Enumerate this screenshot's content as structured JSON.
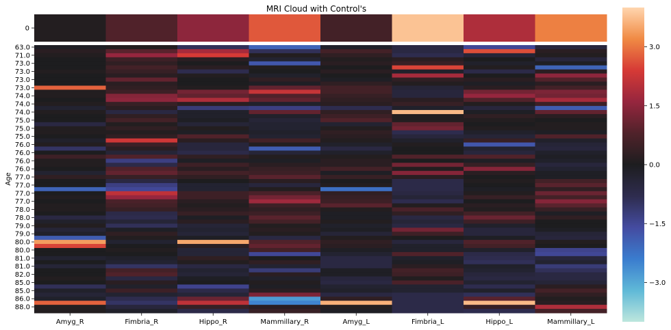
{
  "chart_data": [
    {
      "type": "heatmap",
      "title": "MRI Cloud with Control's",
      "columns": [
        "Amyg_R",
        "Fimbria_R",
        "Hippo_R",
        "Mammillary_R",
        "Amyg_L",
        "Fimbria_L",
        "Hippo_L",
        "Mammillary_L"
      ],
      "rows": [
        "0"
      ],
      "values": [
        [
          0.1,
          0.8,
          1.5,
          2.7,
          0.6,
          3.8,
          1.9,
          3.1
        ]
      ]
    },
    {
      "type": "heatmap",
      "ylabel": "Age",
      "columns": [
        "Amyg_R",
        "Fimbria_R",
        "Hippo_R",
        "Mammillary_R",
        "Amyg_L",
        "Fimbria_L",
        "Hippo_L",
        "Mammillary_L"
      ],
      "row_tick_labels": [
        "63.0",
        "71.0",
        "73.0",
        "73.0",
        "73.0",
        "73.0",
        "74.0",
        "74.0",
        "74.0",
        "75.0",
        "75.0",
        "75.0",
        "76.0",
        "76.0",
        "76.0",
        "76.0",
        "77.0",
        "77.0",
        "77.0",
        "77.0",
        "78.0",
        "78.0",
        "79.0",
        "79.0",
        "80.0",
        "80.0",
        "81.0",
        "81.0",
        "82.0",
        "85.0",
        "85.0",
        "86.0",
        "88.0"
      ],
      "rows": [
        {
          "age": "63.0",
          "values": [
            -0.1,
            0.1,
            -0.9,
            -2.0,
            -0.2,
            -0.6,
            -1.5,
            -0.5
          ]
        },
        {
          "age": "63.0",
          "values": [
            0.2,
            0.9,
            1.8,
            -0.9,
            0.6,
            -0.6,
            2.6,
            0.2
          ]
        },
        {
          "age": "71.0",
          "values": [
            0.1,
            1.6,
            2.4,
            0.1,
            0.3,
            -0.8,
            -0.4,
            0.1
          ]
        },
        {
          "age": "71.0",
          "values": [
            0.0,
            0.5,
            0.2,
            -0.3,
            0.1,
            0.2,
            0.0,
            -0.5
          ]
        },
        {
          "age": "73.0",
          "values": [
            0.0,
            0.3,
            0.0,
            -1.8,
            0.2,
            0.4,
            -0.2,
            -0.1
          ]
        },
        {
          "age": "73.0",
          "values": [
            0.0,
            0.6,
            0.2,
            0.1,
            0.0,
            2.5,
            0.1,
            -2.0
          ]
        },
        {
          "age": "73.0",
          "values": [
            0.1,
            0.4,
            -0.8,
            0.0,
            0.2,
            -0.2,
            -0.7,
            0.2
          ]
        },
        {
          "age": "73.0",
          "values": [
            0.0,
            0.2,
            0.1,
            -0.2,
            0.0,
            1.8,
            0.0,
            1.5
          ]
        },
        {
          "age": "73.0",
          "values": [
            0.0,
            1.0,
            0.0,
            0.3,
            -0.1,
            0.3,
            0.2,
            0.8
          ]
        },
        {
          "age": "73.0",
          "values": [
            0.0,
            0.2,
            0.0,
            -0.1,
            0.3,
            0.1,
            -0.1,
            0.2
          ]
        },
        {
          "age": "73.0",
          "values": [
            2.8,
            0.3,
            0.1,
            1.0,
            0.6,
            -0.4,
            0.2,
            0.6
          ]
        },
        {
          "age": "73.0",
          "values": [
            0.1,
            0.5,
            1.2,
            2.2,
            0.6,
            -0.5,
            1.2,
            1.3
          ]
        },
        {
          "age": "74.0",
          "values": [
            0.1,
            1.4,
            1.0,
            0.8,
            0.4,
            -0.5,
            1.6,
            1.2
          ]
        },
        {
          "age": "74.0",
          "values": [
            0.0,
            1.5,
            1.9,
            1.0,
            0.3,
            0.2,
            0.8,
            1.8
          ]
        },
        {
          "age": "74.0",
          "values": [
            0.1,
            0.4,
            0.2,
            -0.2,
            0.2,
            0.4,
            0.1,
            0.5
          ]
        },
        {
          "age": "74.0",
          "values": [
            -0.3,
            0.2,
            -1.2,
            -1.3,
            -0.8,
            -0.2,
            -0.5,
            -1.9
          ]
        },
        {
          "age": "74.0",
          "values": [
            0.1,
            -0.6,
            -0.2,
            1.0,
            0.3,
            3.7,
            -0.1,
            1.0
          ]
        },
        {
          "age": "74.0",
          "values": [
            0.0,
            0.3,
            -0.2,
            -0.2,
            0.5,
            0.1,
            0.3,
            0.2
          ]
        },
        {
          "age": "74.0",
          "values": [
            0.0,
            0.6,
            -0.1,
            -0.4,
            0.8,
            0.1,
            0.1,
            0.0
          ]
        },
        {
          "age": "74.0",
          "values": [
            -0.6,
            0.1,
            -0.4,
            -0.3,
            -0.3,
            1.0,
            0.0,
            0.1
          ]
        },
        {
          "age": "75.0",
          "values": [
            0.1,
            0.3,
            0.1,
            -0.3,
            0.1,
            1.2,
            0.1,
            0.1
          ]
        },
        {
          "age": "75.0",
          "values": [
            0.1,
            0.1,
            -0.1,
            -0.2,
            0.3,
            -0.8,
            -0.2,
            -0.1
          ]
        },
        {
          "age": "75.0",
          "values": [
            0.0,
            0.3,
            0.8,
            -0.3,
            0.2,
            -0.5,
            -0.4,
            0.8
          ]
        },
        {
          "age": "75.0",
          "values": [
            -0.2,
            2.3,
            0.2,
            0.6,
            0.1,
            -0.2,
            0.4,
            -0.2
          ]
        },
        {
          "age": "75.0",
          "values": [
            0.1,
            0.5,
            -0.5,
            0.1,
            -0.2,
            0.1,
            -1.8,
            -0.4
          ]
        },
        {
          "age": "75.0",
          "values": [
            -1.0,
            0.2,
            -0.5,
            -1.9,
            -0.6,
            0.0,
            -0.3,
            -0.5
          ]
        },
        {
          "age": "76.0",
          "values": [
            0.0,
            -0.4,
            -0.7,
            -0.4,
            -0.2,
            0.0,
            -0.5,
            -0.2
          ]
        },
        {
          "age": "76.0",
          "values": [
            0.5,
            0.8,
            0.3,
            0.1,
            0.1,
            0.8,
            0.8,
            -0.1
          ]
        },
        {
          "age": "76.0",
          "values": [
            0.1,
            -1.3,
            -0.1,
            -0.1,
            0.2,
            0.0,
            -0.1,
            -0.2
          ]
        },
        {
          "age": "76.0",
          "values": [
            0.1,
            -0.7,
            0.5,
            0.2,
            0.2,
            1.2,
            0.4,
            -0.5
          ]
        },
        {
          "age": "76.0",
          "values": [
            0.0,
            0.8,
            0.2,
            0.4,
            0.6,
            0.1,
            1.4,
            -0.3
          ]
        },
        {
          "age": "76.0",
          "values": [
            -0.3,
            1.0,
            0.6,
            0.5,
            -0.1,
            1.4,
            0.2,
            -0.1
          ]
        },
        {
          "age": "76.0",
          "values": [
            0.3,
            0.4,
            0.3,
            0.9,
            0.4,
            0.2,
            0.0,
            -0.1
          ]
        },
        {
          "age": "77.0",
          "values": [
            0.0,
            -0.6,
            0.0,
            0.2,
            0.0,
            -0.7,
            0.1,
            0.6
          ]
        },
        {
          "age": "77.0",
          "values": [
            0.0,
            -1.3,
            -0.3,
            -0.5,
            0.1,
            -0.7,
            0.0,
            0.9
          ]
        },
        {
          "age": "77.0",
          "values": [
            -2.0,
            -1.5,
            -0.3,
            0.1,
            -2.2,
            -0.7,
            -0.1,
            0.3
          ]
        },
        {
          "age": "77.0",
          "values": [
            0.0,
            2.1,
            0.5,
            0.7,
            0.3,
            -0.6,
            0.1,
            1.1
          ]
        },
        {
          "age": "77.0",
          "values": [
            0.1,
            1.6,
            0.5,
            1.2,
            0.4,
            -0.4,
            0.4,
            0.6
          ]
        },
        {
          "age": "77.0",
          "values": [
            0.0,
            0.7,
            0.2,
            1.7,
            0.5,
            -0.8,
            0.0,
            1.4
          ]
        },
        {
          "age": "77.0",
          "values": [
            0.1,
            0.6,
            0.1,
            0.5,
            0.9,
            0.1,
            0.2,
            0.9
          ]
        },
        {
          "age": "77.0",
          "values": [
            0.1,
            0.4,
            0.2,
            0.3,
            0.1,
            0.7,
            0.1,
            0.4
          ]
        },
        {
          "age": "78.0",
          "values": [
            0.0,
            -0.7,
            0.4,
            0.5,
            -0.1,
            0.3,
            0.6,
            -0.1
          ]
        },
        {
          "age": "78.0",
          "values": [
            -0.6,
            -0.8,
            -0.1,
            0.9,
            -0.1,
            -0.6,
            1.1,
            0.3
          ]
        },
        {
          "age": "78.0",
          "values": [
            -0.2,
            -0.4,
            0.2,
            0.6,
            0.1,
            -0.4,
            0.5,
            0.0
          ]
        },
        {
          "age": "78.0",
          "values": [
            0.1,
            -0.9,
            -0.4,
            0.1,
            -0.2,
            -0.6,
            -0.2,
            0.0
          ]
        },
        {
          "age": "79.0",
          "values": [
            -0.4,
            -0.1,
            -0.3,
            0.2,
            -0.1,
            1.2,
            -0.5,
            -0.1
          ]
        },
        {
          "age": "79.0",
          "values": [
            -0.2,
            0.3,
            -0.4,
            0.1,
            -0.4,
            0.5,
            -0.5,
            -0.4
          ]
        },
        {
          "age": "79.0",
          "values": [
            -1.9,
            0.1,
            -0.1,
            -0.6,
            0.1,
            0.0,
            -0.1,
            -0.5
          ]
        },
        {
          "age": "79.0",
          "values": [
            3.4,
            -0.3,
            3.5,
            0.8,
            0.3,
            -0.5,
            0.8,
            0.1
          ]
        },
        {
          "age": "80.0",
          "values": [
            2.5,
            0.0,
            0.2,
            1.0,
            0.2,
            -0.2,
            0.6,
            0.0
          ]
        },
        {
          "age": "80.0",
          "values": [
            0.0,
            0.1,
            -0.4,
            0.6,
            -0.1,
            -0.2,
            -0.2,
            -1.4
          ]
        },
        {
          "age": "80.0",
          "values": [
            0.0,
            0.0,
            -0.4,
            -1.5,
            -0.3,
            0.8,
            -0.7,
            -1.5
          ]
        },
        {
          "age": "80.0",
          "values": [
            -0.3,
            -0.2,
            0.3,
            0.0,
            -0.6,
            -0.2,
            -0.8,
            -0.5
          ]
        },
        {
          "age": "81.0",
          "values": [
            0.0,
            -0.3,
            0.1,
            0.3,
            -0.6,
            -0.1,
            -0.9,
            -0.3
          ]
        },
        {
          "age": "81.0",
          "values": [
            -0.4,
            -1.0,
            -0.6,
            -0.3,
            -0.6,
            0.2,
            -0.2,
            -1.2
          ]
        },
        {
          "age": "81.0",
          "values": [
            0.0,
            0.6,
            -0.3,
            -1.2,
            -0.1,
            0.6,
            -0.3,
            -0.9
          ]
        },
        {
          "age": "81.0",
          "values": [
            0.0,
            0.8,
            -0.4,
            0.2,
            -0.1,
            0.5,
            -0.5,
            -0.6
          ]
        },
        {
          "age": "82.0",
          "values": [
            0.1,
            -0.6,
            -0.1,
            -0.2,
            -0.5,
            0.1,
            -0.6,
            -0.6
          ]
        },
        {
          "age": "82.0",
          "values": [
            0.0,
            0.2,
            0.0,
            0.1,
            -0.6,
            0.7,
            -0.3,
            -0.4
          ]
        },
        {
          "age": "85.0",
          "values": [
            -0.9,
            -0.2,
            -1.4,
            -0.1,
            -0.3,
            -0.3,
            -0.8,
            0.2
          ]
        },
        {
          "age": "85.0",
          "values": [
            -0.2,
            0.5,
            -0.7,
            0.2,
            -0.2,
            -0.3,
            -0.2,
            0.6
          ]
        },
        {
          "age": "85.0",
          "values": [
            -0.4,
            -0.3,
            -0.4,
            1.3,
            -0.6,
            -0.7,
            -0.9,
            0.3
          ]
        },
        {
          "age": "86.0",
          "values": [
            -0.2,
            -0.8,
            1.1,
            -2.8,
            0.3,
            -0.7,
            0.9,
            0.1
          ]
        },
        {
          "age": "86.0",
          "values": [
            2.8,
            -1.0,
            2.1,
            -2.5,
            3.6,
            -0.7,
            3.7,
            0.2
          ]
        },
        {
          "age": "86.0",
          "values": [
            0.1,
            -0.5,
            0.4,
            0.2,
            0.1,
            -0.7,
            0.4,
            1.9
          ]
        },
        {
          "age": "88.0",
          "values": [
            0.1,
            -0.2,
            -0.7,
            0.4,
            -0.1,
            -0.7,
            -0.8,
            0.6
          ]
        }
      ]
    }
  ],
  "colorbar": {
    "colormap": "icefire",
    "vmin": -4.0,
    "vmax": 4.0,
    "ticks": [
      3.0,
      1.5,
      0.0,
      -1.5,
      -3.0
    ],
    "tick_labels": [
      "3.0",
      "1.5",
      "0.0",
      "−1.5",
      "−3.0"
    ]
  }
}
